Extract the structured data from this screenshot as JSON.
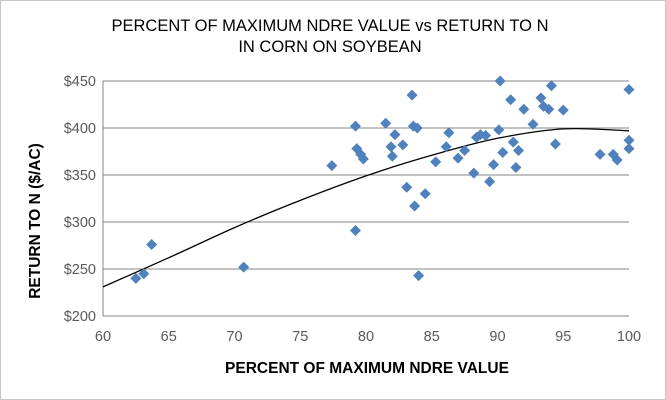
{
  "chart_data": {
    "type": "scatter",
    "title_lines": [
      "PERCENT OF MAXIMUM  NDRE VALUE vs RETURN TO N",
      "IN CORN ON SOYBEAN"
    ],
    "xlabel": "PERCENT OF MAXIMUM  NDRE VALUE",
    "ylabel": "RETURN TO N ($/AC)",
    "xlim": [
      60,
      100
    ],
    "ylim": [
      200,
      450
    ],
    "x_ticks": [
      "60",
      "65",
      "70",
      "75",
      "80",
      "85",
      "90",
      "95",
      "100"
    ],
    "y_ticks": [
      "$200",
      "$250",
      "$300",
      "$350",
      "$400",
      "$450"
    ],
    "grid": "horizontal",
    "legend": "none",
    "colors": {
      "points": "#4f81bd",
      "trendline": "#000000",
      "gridline": "#868686"
    },
    "series": [
      {
        "marker": "diamond",
        "points": [
          [
            62.5,
            240
          ],
          [
            63.1,
            245
          ],
          [
            63.7,
            276
          ],
          [
            70.7,
            252
          ],
          [
            77.4,
            360
          ],
          [
            79.2,
            402
          ],
          [
            79.2,
            291
          ],
          [
            79.3,
            378
          ],
          [
            79.6,
            372
          ],
          [
            79.8,
            367
          ],
          [
            81.5,
            405
          ],
          [
            81.9,
            380
          ],
          [
            82.0,
            370
          ],
          [
            82.2,
            393
          ],
          [
            82.8,
            382
          ],
          [
            83.1,
            337
          ],
          [
            83.5,
            435
          ],
          [
            83.6,
            402
          ],
          [
            83.7,
            317
          ],
          [
            83.9,
            400
          ],
          [
            84.0,
            243
          ],
          [
            84.5,
            330
          ],
          [
            85.3,
            364
          ],
          [
            86.1,
            380
          ],
          [
            86.3,
            395
          ],
          [
            87.0,
            368
          ],
          [
            87.5,
            376
          ],
          [
            88.2,
            352
          ],
          [
            88.4,
            390
          ],
          [
            88.7,
            393
          ],
          [
            89.1,
            392
          ],
          [
            89.4,
            343
          ],
          [
            89.7,
            361
          ],
          [
            90.1,
            398
          ],
          [
            90.2,
            450
          ],
          [
            90.4,
            374
          ],
          [
            91.0,
            430
          ],
          [
            91.2,
            385
          ],
          [
            91.4,
            358
          ],
          [
            91.6,
            376
          ],
          [
            92.0,
            420
          ],
          [
            92.7,
            404
          ],
          [
            93.3,
            432
          ],
          [
            93.5,
            423
          ],
          [
            93.9,
            420
          ],
          [
            94.1,
            445
          ],
          [
            94.4,
            383
          ],
          [
            95.0,
            419
          ],
          [
            97.8,
            372
          ],
          [
            98.8,
            372
          ],
          [
            99.1,
            366
          ],
          [
            100.0,
            441
          ],
          [
            100.0,
            387
          ],
          [
            100.0,
            378
          ]
        ]
      }
    ],
    "trendline": {
      "type": "polynomial-2",
      "points": [
        [
          60,
          231
        ],
        [
          65,
          262
        ],
        [
          70,
          294
        ],
        [
          75,
          323
        ],
        [
          80,
          349
        ],
        [
          85,
          371
        ],
        [
          90,
          389
        ],
        [
          95,
          399
        ],
        [
          100,
          397
        ]
      ]
    }
  }
}
